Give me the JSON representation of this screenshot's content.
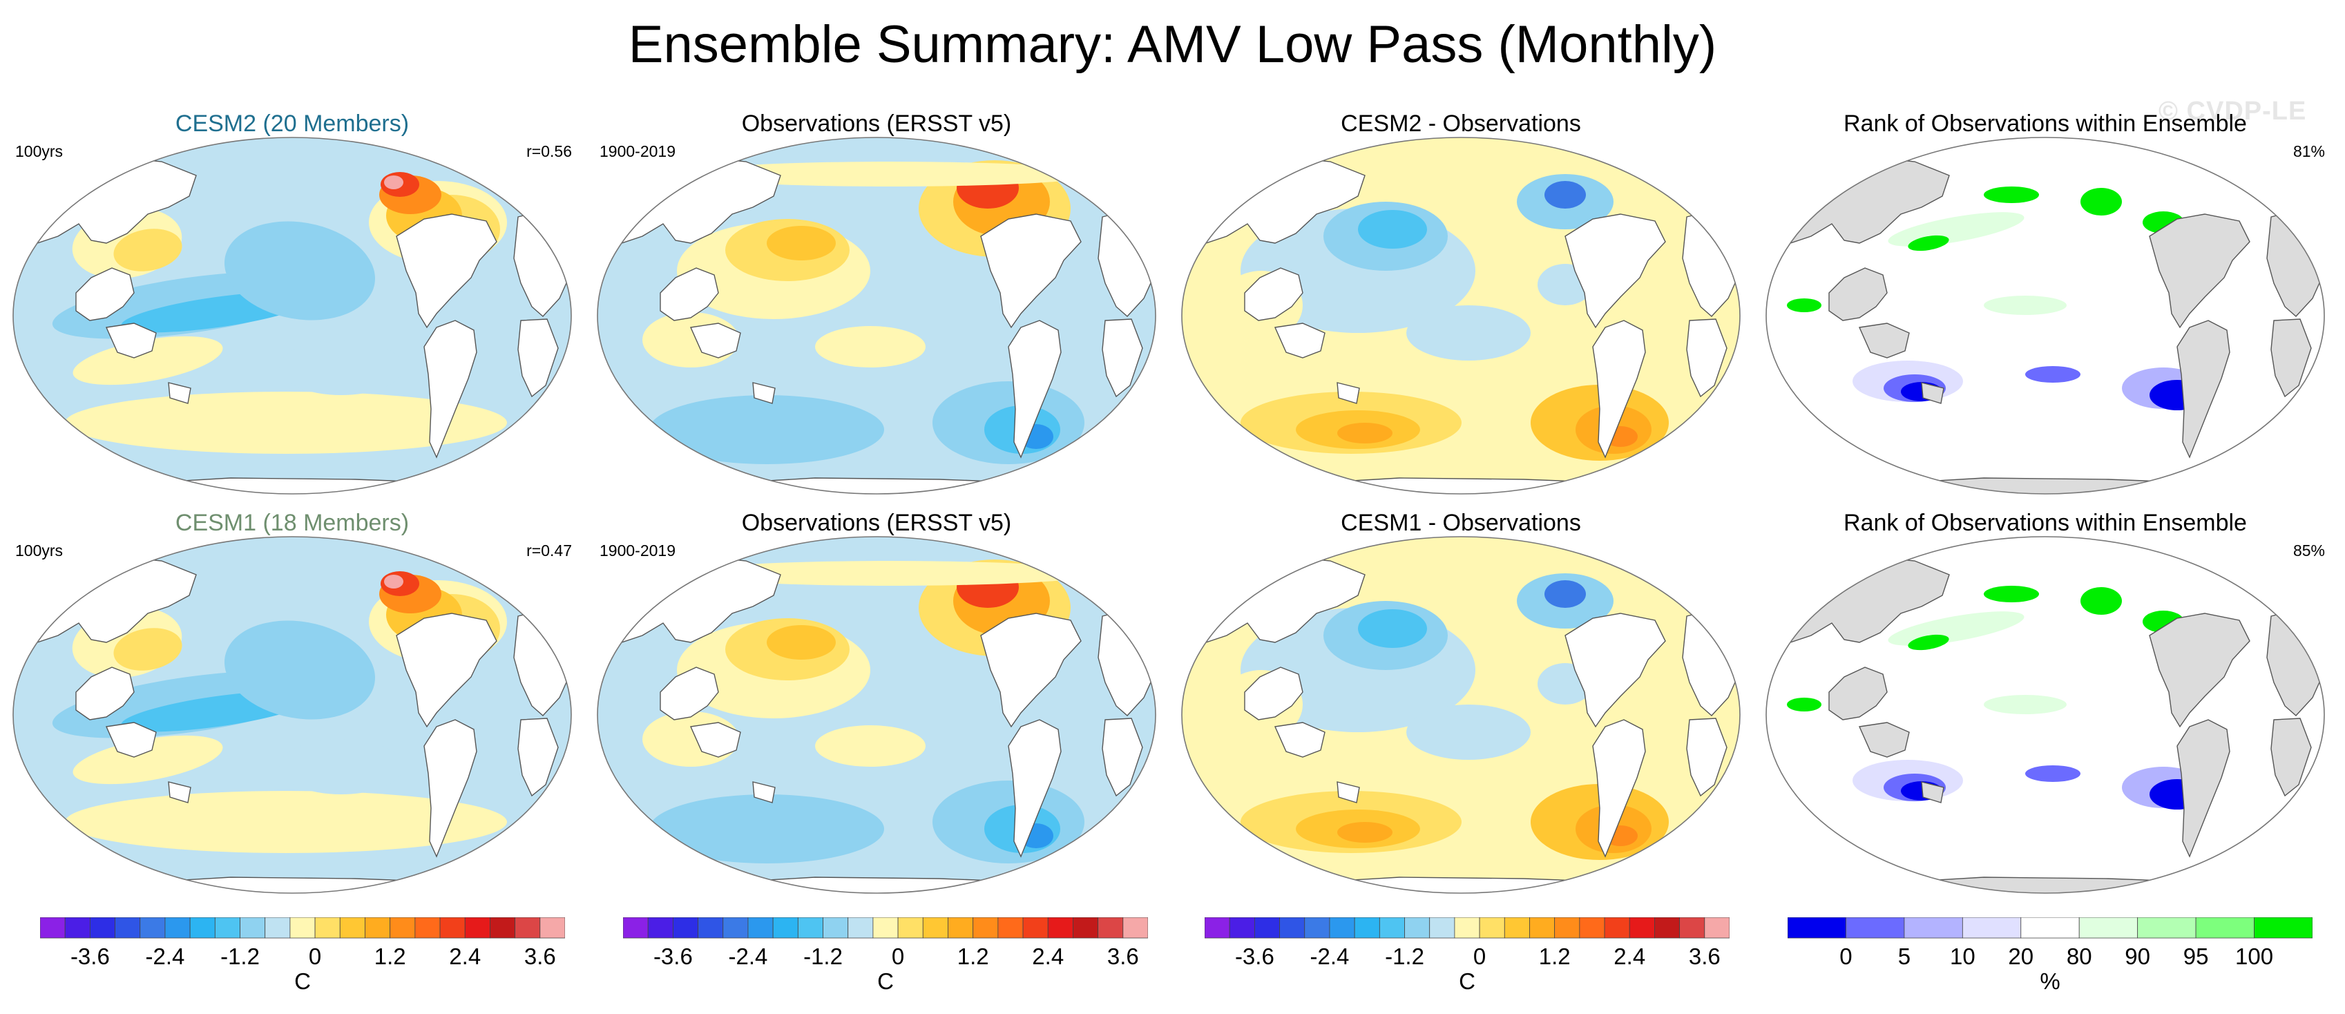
{
  "figure": {
    "title": "Ensemble Summary: AMV Low Pass (Monthly)",
    "watermark": "© CVDP-LE"
  },
  "panels": [
    {
      "title": "CESM2 (20 Members)",
      "title_color": "#1f6f8f",
      "left_label": "100yrs",
      "right_label": "r=0.56",
      "field": "model"
    },
    {
      "title": "Observations (ERSST v5)",
      "title_color": "#000000",
      "left_label": "1900-2019",
      "right_label": "",
      "field": "obs"
    },
    {
      "title": "CESM2 - Observations",
      "title_color": "#000000",
      "left_label": "",
      "right_label": "",
      "field": "diff"
    },
    {
      "title": "Rank of Observations within Ensemble",
      "title_color": "#000000",
      "left_label": "",
      "right_label": "81%",
      "field": "rank"
    },
    {
      "title": "CESM1 (18 Members)",
      "title_color": "#6f8f6f",
      "left_label": "100yrs",
      "right_label": "r=0.47",
      "field": "model"
    },
    {
      "title": "Observations (ERSST v5)",
      "title_color": "#000000",
      "left_label": "1900-2019",
      "right_label": "",
      "field": "obs"
    },
    {
      "title": "CESM1 - Observations",
      "title_color": "#000000",
      "left_label": "",
      "right_label": "",
      "field": "diff"
    },
    {
      "title": "Rank of Observations within Ensemble",
      "title_color": "#000000",
      "left_label": "",
      "right_label": "85%",
      "field": "rank"
    }
  ],
  "colorbars": {
    "temperature": {
      "unit": "C",
      "tick_labels": [
        "-3.6",
        "-2.4",
        "-1.2",
        "0",
        "1.2",
        "2.4",
        "3.6"
      ],
      "colors": [
        "#8b21e6",
        "#4b1ee6",
        "#2d2ee6",
        "#2f55e6",
        "#3b7ae6",
        "#2b98ee",
        "#2cb4f2",
        "#4ec4f2",
        "#8fd2f0",
        "#bfe2f2",
        "#fff7b3",
        "#ffe066",
        "#ffc733",
        "#ffac1f",
        "#ff8c1a",
        "#ff6a1a",
        "#f2401a",
        "#e61a1a",
        "#c21a1a",
        "#dc4646",
        "#f5a8a8"
      ]
    },
    "rank": {
      "unit": "%",
      "tick_labels": [
        "0",
        "5",
        "10",
        "20",
        "80",
        "90",
        "95",
        "100"
      ],
      "colors": [
        "#0000ee",
        "#6b6bff",
        "#b3b3ff",
        "#e0e0ff",
        "#ffffff",
        "#e0ffe0",
        "#b3ffb3",
        "#7dff7d",
        "#00ee00"
      ]
    }
  }
}
